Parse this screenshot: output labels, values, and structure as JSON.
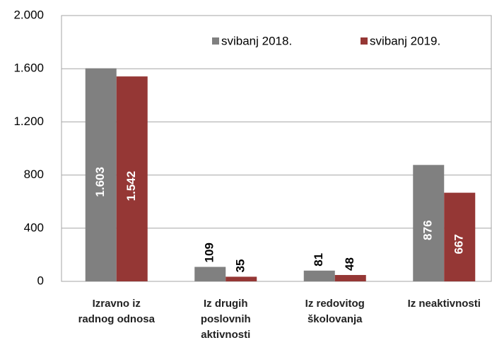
{
  "chart_data": {
    "type": "bar",
    "categories": [
      "Izravno iz\nradnog odnosa",
      "Iz drugih\nposlovnih\naktivnosti",
      "Iz redovitog\nškolovanja",
      "Iz neaktivnosti"
    ],
    "series": [
      {
        "name": "svibanj 2018.",
        "color": "#808080",
        "values": [
          1603,
          109,
          81,
          876
        ],
        "value_labels": [
          "1.603",
          "109",
          "81",
          "876"
        ]
      },
      {
        "name": "svibanj 2019.",
        "color": "#953735",
        "values": [
          1542,
          35,
          48,
          667
        ],
        "value_labels": [
          "1.542",
          "35",
          "48",
          "667"
        ]
      }
    ],
    "ylim": [
      0,
      2000
    ],
    "yticks": [
      0,
      400,
      800,
      {
        "value": 1200,
        "label": "1.200"
      },
      {
        "value": 1600,
        "label": "1.600"
      },
      {
        "value": 2000,
        "label": "2.000"
      }
    ],
    "grid": true,
    "legend": "top-right"
  }
}
